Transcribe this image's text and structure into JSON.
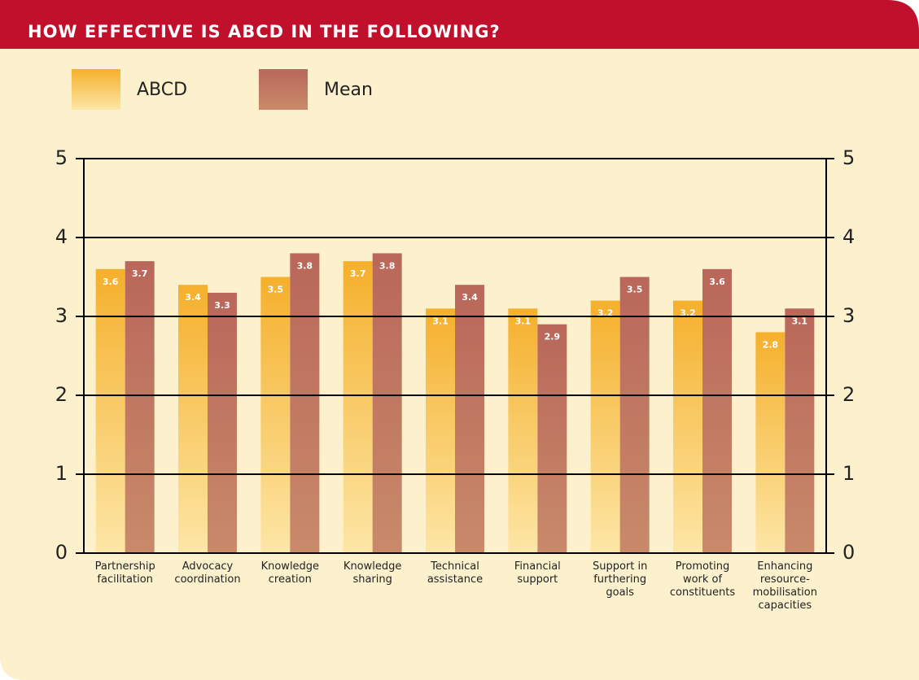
{
  "chart_data": {
    "type": "bar",
    "title": "HOW EFFECTIVE IS ABCD IN THE FOLLOWING?",
    "categories": [
      "Partnership\nfacilitation",
      "Advocacy\ncoordination",
      "Knowledge\ncreation",
      "Knowledge\nsharing",
      "Technical\nassistance",
      "Financial\nsupport",
      "Support in\nfurthering\ngoals",
      "Promoting\nwork of\nconstituents",
      "Enhancing\nresource-\nmobilisation\ncapacities"
    ],
    "series": [
      {
        "name": "ABCD",
        "color": "#f5b335",
        "values": [
          3.6,
          3.4,
          3.5,
          3.7,
          3.1,
          3.1,
          3.2,
          3.2,
          2.8
        ]
      },
      {
        "name": "Mean",
        "color": "#c0695a",
        "values": [
          3.7,
          3.3,
          3.8,
          3.8,
          3.4,
          2.9,
          3.5,
          3.6,
          3.1
        ]
      }
    ],
    "ylim": [
      0,
      5
    ],
    "yticks": [
      0,
      1,
      2,
      3,
      4,
      5
    ],
    "y2lim": [
      0,
      5
    ],
    "y2ticks": [
      0,
      1,
      2,
      3,
      4,
      5
    ],
    "grid": true,
    "legend": "top-left"
  }
}
